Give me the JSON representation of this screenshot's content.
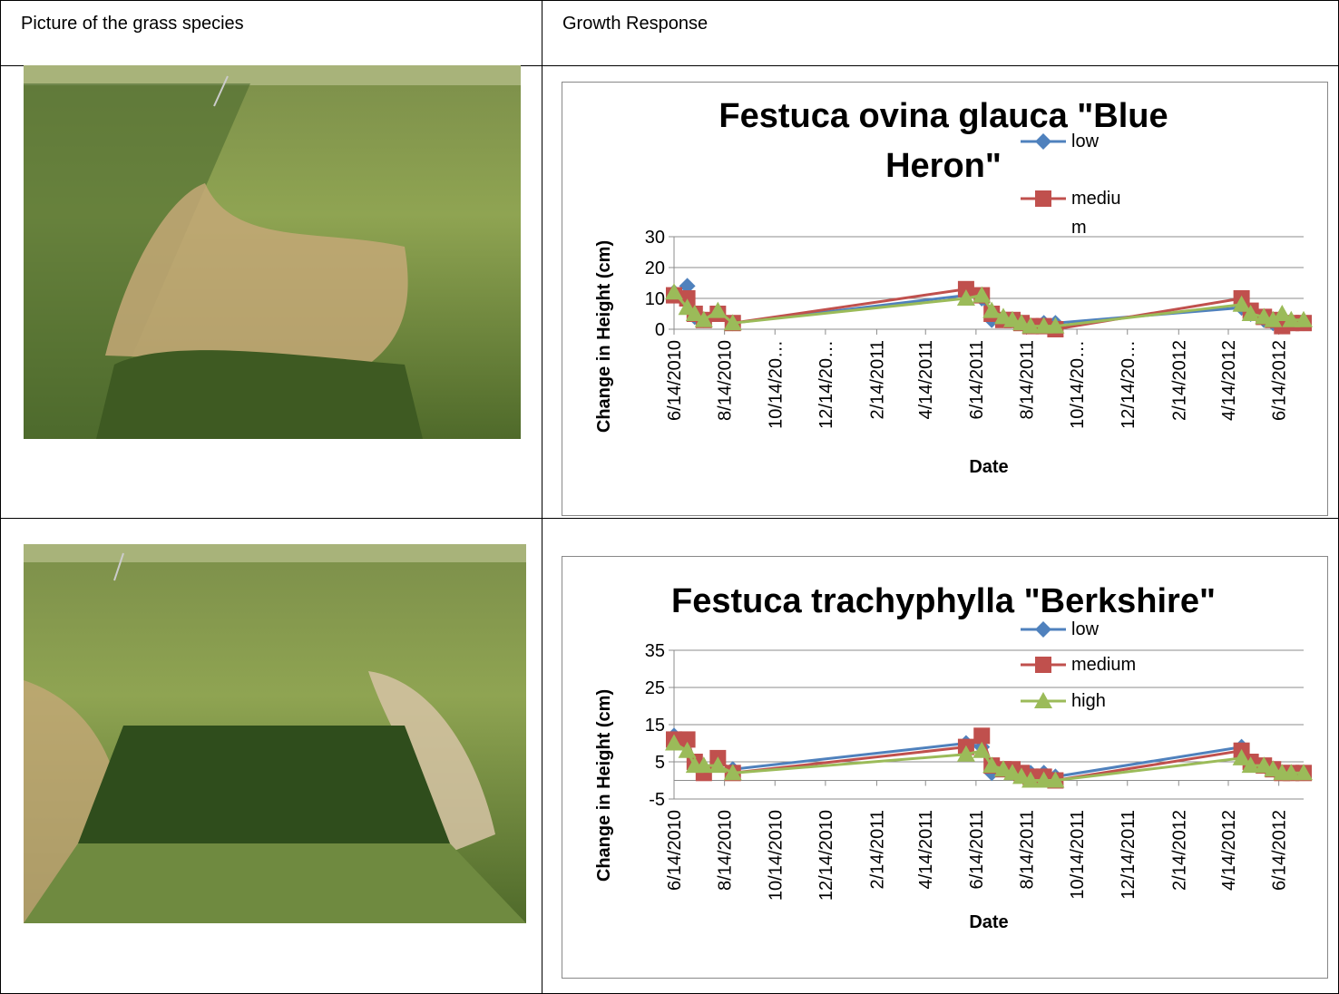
{
  "header": [
    "Picture of the grass species",
    "Growth Response"
  ],
  "chart_data": [
    {
      "type": "line",
      "title": "Festuca ovina glauca \"Blue Heron\"",
      "x_label": "Date",
      "y_label": "Change in Height (cm)",
      "x": [
        "2010-06-14",
        "2010-06-30",
        "2010-07-09",
        "2010-07-20",
        "2010-08-06",
        "2010-08-24",
        "2011-06-02",
        "2011-06-21",
        "2011-07-03",
        "2011-07-17",
        "2011-07-28",
        "2011-08-08",
        "2011-08-19",
        "2011-09-04",
        "2011-09-18",
        "2012-04-30",
        "2012-05-11",
        "2012-05-27",
        "2012-06-07",
        "2012-06-18",
        "2012-06-29",
        "2012-07-14"
      ],
      "series": [
        {
          "name": "low",
          "color": "#4f81bd",
          "marker": "diamond",
          "values": [
            12,
            14,
            4,
            3,
            5,
            2,
            11,
            10,
            3,
            3,
            3,
            2,
            1,
            2,
            2,
            7,
            5,
            3,
            2,
            1,
            2,
            2
          ]
        },
        {
          "name": "medium",
          "color": "#c0504d",
          "marker": "square",
          "values": [
            11,
            10,
            5,
            3,
            5,
            2,
            13,
            11,
            5,
            3,
            3,
            2,
            1,
            1,
            0,
            10,
            6,
            4,
            3,
            1,
            2,
            2
          ]
        },
        {
          "color": "#9bbb59",
          "marker": "triangle",
          "values": [
            12,
            7,
            5,
            3,
            6,
            2,
            10,
            11,
            6,
            4,
            3,
            2,
            1,
            1,
            1,
            8,
            5,
            4,
            3,
            5,
            3,
            3
          ]
        }
      ],
      "xlim": [
        "2010-06-14",
        "2012-07-14"
      ],
      "xticks": [
        {
          "value": "2010-06-14",
          "label": "6/14/2010"
        },
        {
          "value": "2010-08-14",
          "label": "8/14/2010"
        },
        {
          "value": "2010-10-14",
          "label": "10/14/20…"
        },
        {
          "value": "2010-12-14",
          "label": "12/14/20…"
        },
        {
          "value": "2011-02-14",
          "label": "2/14/2011"
        },
        {
          "value": "2011-04-14",
          "label": "4/14/2011"
        },
        {
          "value": "2011-06-14",
          "label": "6/14/2011"
        },
        {
          "value": "2011-08-14",
          "label": "8/14/2011"
        },
        {
          "value": "2011-10-14",
          "label": "10/14/20…"
        },
        {
          "value": "2011-12-14",
          "label": "12/14/20…"
        },
        {
          "value": "2012-02-14",
          "label": "2/14/2012"
        },
        {
          "value": "2012-04-14",
          "label": "4/14/2012"
        },
        {
          "value": "2012-06-14",
          "label": "6/14/2012"
        }
      ],
      "ylim": [
        0,
        30
      ],
      "yticks": [
        0,
        10,
        20,
        30
      ],
      "grid": true
    },
    {
      "type": "line",
      "title": "Festuca trachyphylla \"Berkshire\"",
      "x_label": "Date",
      "y_label": "Change in Height (cm)",
      "x": [
        "2010-06-14",
        "2010-06-30",
        "2010-07-09",
        "2010-07-20",
        "2010-08-06",
        "2010-08-24",
        "2011-06-02",
        "2011-06-21",
        "2011-07-03",
        "2011-07-17",
        "2011-07-28",
        "2011-08-08",
        "2011-08-19",
        "2011-09-04",
        "2011-09-18",
        "2012-04-30",
        "2012-05-11",
        "2012-05-27",
        "2012-06-07",
        "2012-06-18",
        "2012-06-29",
        "2012-07-14"
      ],
      "series": [
        {
          "name": "low",
          "color": "#4f81bd",
          "marker": "diamond",
          "values": [
            12,
            11,
            5,
            3,
            5,
            3,
            10,
            9,
            2,
            3,
            3,
            2,
            2,
            2,
            1,
            9,
            5,
            4,
            3,
            2,
            2,
            2
          ]
        },
        {
          "name": "medium",
          "color": "#c0504d",
          "marker": "square",
          "values": [
            11,
            11,
            5,
            2,
            6,
            2,
            9,
            12,
            4,
            3,
            3,
            2,
            1,
            1,
            0,
            8,
            5,
            4,
            3,
            2,
            2,
            2
          ]
        },
        {
          "name": "high",
          "color": "#9bbb59",
          "marker": "triangle",
          "values": [
            10,
            8,
            4,
            4,
            4,
            2,
            7,
            8,
            4,
            3,
            2,
            1,
            0,
            0,
            0,
            6,
            4,
            4,
            3,
            2,
            2,
            2
          ]
        }
      ],
      "xlim": [
        "2010-06-14",
        "2012-07-14"
      ],
      "xticks": [
        {
          "value": "2010-06-14",
          "label": "6/14/2010"
        },
        {
          "value": "2010-08-14",
          "label": "8/14/2010"
        },
        {
          "value": "2010-10-14",
          "label": "10/14/2010"
        },
        {
          "value": "2010-12-14",
          "label": "12/14/2010"
        },
        {
          "value": "2011-02-14",
          "label": "2/14/2011"
        },
        {
          "value": "2011-04-14",
          "label": "4/14/2011"
        },
        {
          "value": "2011-06-14",
          "label": "6/14/2011"
        },
        {
          "value": "2011-08-14",
          "label": "8/14/2011"
        },
        {
          "value": "2011-10-14",
          "label": "10/14/2011"
        },
        {
          "value": "2011-12-14",
          "label": "12/14/2011"
        },
        {
          "value": "2012-02-14",
          "label": "2/14/2012"
        },
        {
          "value": "2012-04-14",
          "label": "4/14/2012"
        },
        {
          "value": "2012-06-14",
          "label": "6/14/2012"
        }
      ],
      "ylim": [
        -5,
        35
      ],
      "yticks": [
        -5,
        5,
        15,
        25,
        35
      ],
      "grid": true
    }
  ]
}
